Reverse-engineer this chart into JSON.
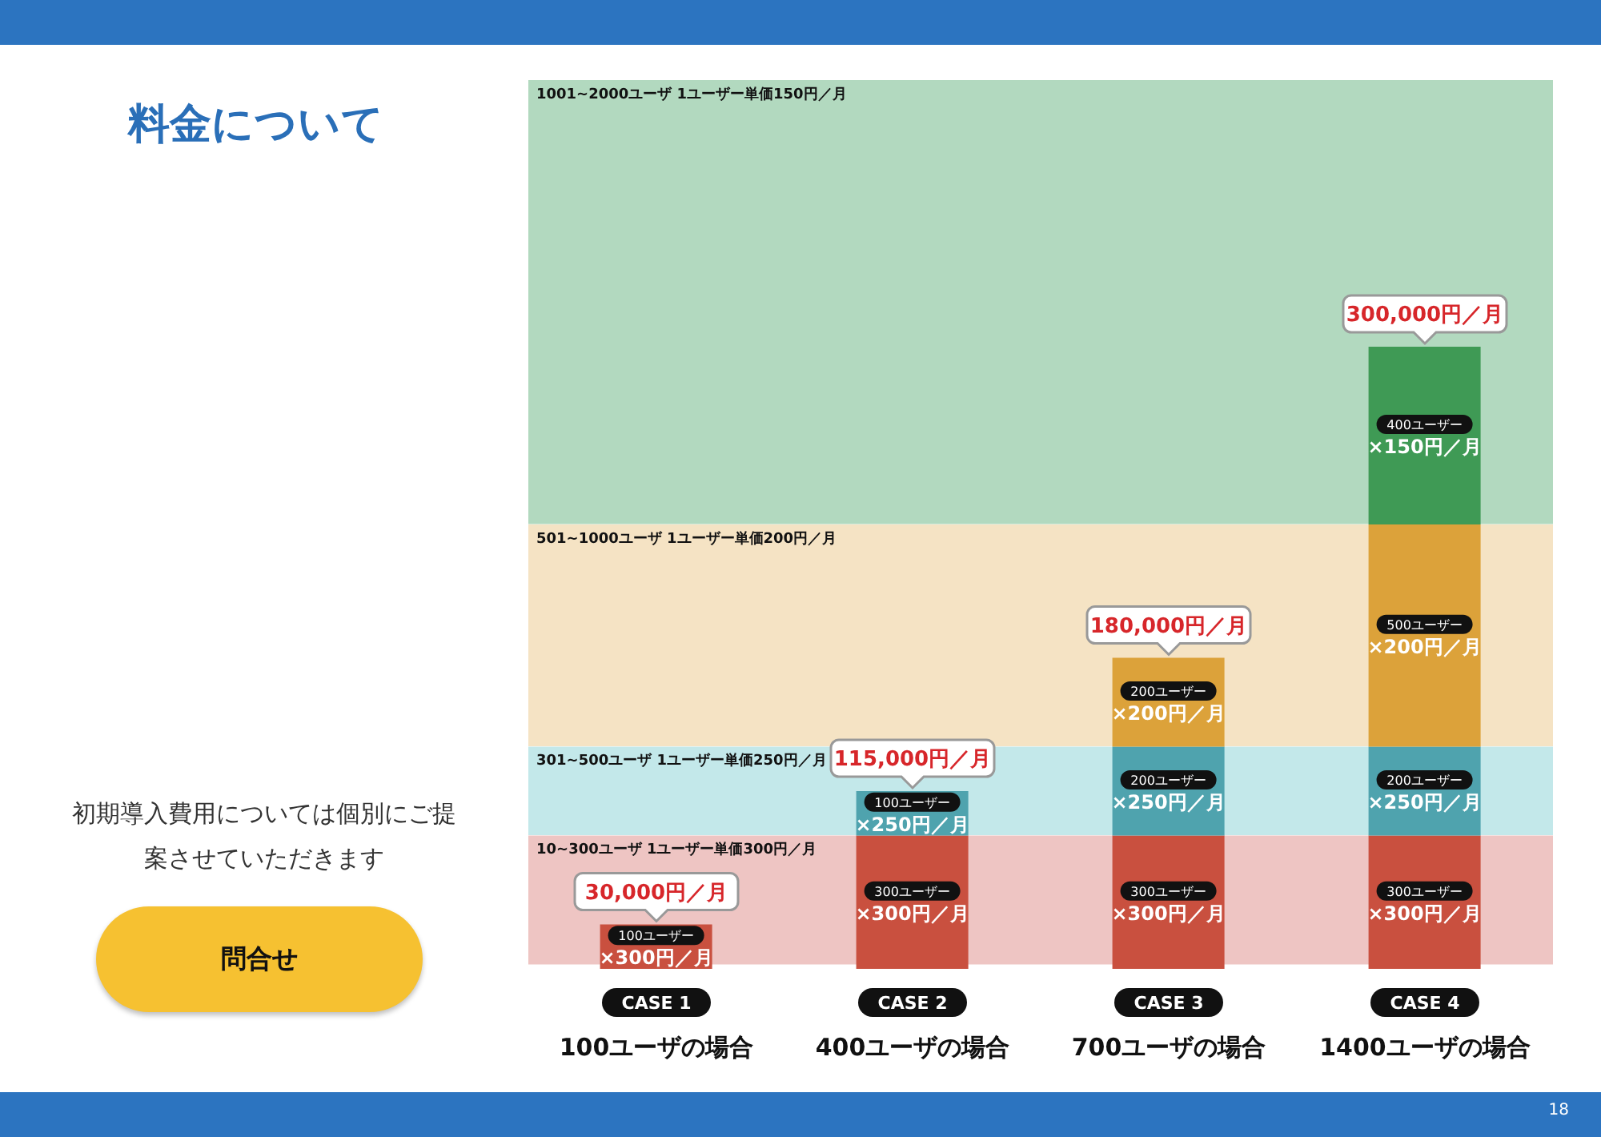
{
  "chart_data": {
    "type": "bar",
    "title": "料金について",
    "stacked": true,
    "categories": [
      "CASE 1\n100ユーザの場合",
      "CASE 2\n400ユーザの場合",
      "CASE 3\n700ユーザの場合",
      "CASE 4\n1400ユーザの場合"
    ],
    "series": [
      {
        "color": "#c9503f",
        "values": [
          100,
          300,
          300,
          300
        ],
        "value_labels": [
          "100ユーザー\n×300円／月",
          "300ユーザー\n×300円／月",
          "300ユーザー\n×300円／月",
          "300ユーザー\n×300円／月"
        ]
      },
      {
        "color": "#4fa3ae",
        "values": [
          null,
          100,
          200,
          200
        ],
        "value_labels": [
          null,
          "100ユーザー\n×250円／月",
          "200ユーザー\n×250円／月",
          "200ユーザー\n×250円／月"
        ]
      },
      {
        "color": "#dca23a",
        "values": [
          null,
          null,
          200,
          500
        ],
        "value_labels": [
          null,
          null,
          "200ユーザー\n×200円／月",
          "500ユーザー\n×200円／月"
        ]
      },
      {
        "color": "#3f9a55",
        "values": [
          null,
          null,
          null,
          400
        ],
        "value_labels": [
          null,
          null,
          null,
          "400ユーザー\n×150円／月"
        ]
      }
    ],
    "ylim": [
      0,
      2000
    ],
    "tick_labels": "x",
    "legend": false,
    "grid": false,
    "bands": [
      {
        "axis": "y",
        "from": 10,
        "to": 300,
        "label": "10~300ユーザ 1ユーザー単価300円／月",
        "color": "#eec5c3"
      },
      {
        "axis": "y",
        "from": 301,
        "to": 500,
        "label": "301~500ユーザ 1ユーザー単価250円／月",
        "color": "#c3e8ea"
      },
      {
        "axis": "y",
        "from": 501,
        "to": 1000,
        "label": "501~1000ユーザ 1ユーザー単価200円／月",
        "color": "#f5e3c4"
      },
      {
        "axis": "y",
        "from": 1001,
        "to": 2000,
        "label": "1001~2000ユーザ 1ユーザー単価150円／月",
        "color": "#b2d9bf"
      }
    ],
    "annotations": [
      {
        "text": "30,000円／月",
        "x": "CASE 1\n100ユーザの場合",
        "y": 100
      },
      {
        "text": "115,000円／月",
        "x": "CASE 2\n400ユーザの場合",
        "y": 400
      },
      {
        "text": "180,000円／月",
        "x": "CASE 3\n700ユーザの場合",
        "y": 700
      },
      {
        "text": "300,000円／月",
        "x": "CASE 4\n1400ユーザの場合",
        "y": 1400
      },
      "初期導入費用については個別にご提案させていただきます",
      "問合せ",
      "18"
    ]
  }
}
